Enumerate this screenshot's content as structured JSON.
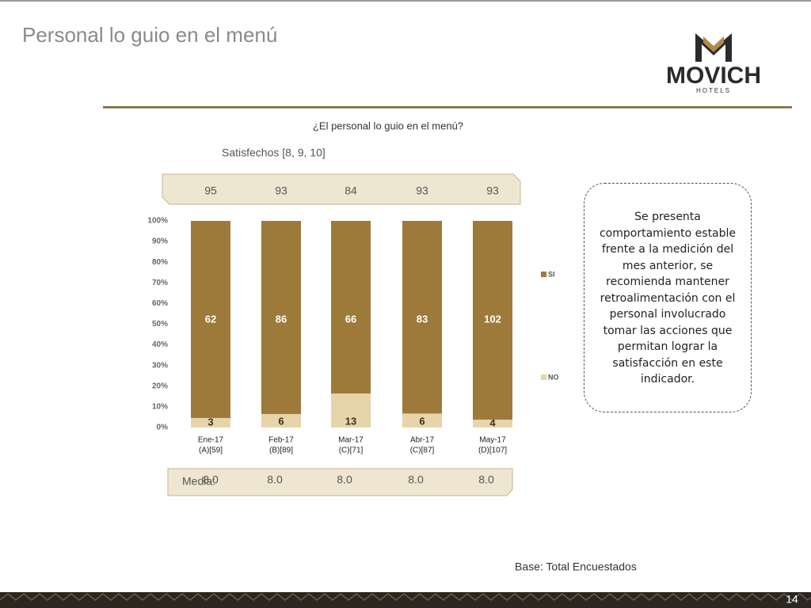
{
  "slide_title": "Personal lo guio en el menú",
  "logo": {
    "name": "MOVICH",
    "sub": "HOTELS"
  },
  "chart_data": {
    "type": "bar",
    "stacking": "percent",
    "title": "¿El personal lo guio en el menú?",
    "categories": [
      "Ene-17",
      "Feb-17",
      "Mar-17",
      "Abr-17",
      "May-17"
    ],
    "category_bases": [
      "(A)[59]",
      "(B)[89]",
      "(C)[71]",
      "(C)[87]",
      "(D)[107]"
    ],
    "series": [
      {
        "name": "NO",
        "color": "#e8d4ab",
        "values": [
          3,
          6,
          13,
          6,
          4
        ]
      },
      {
        "name": "SI",
        "color": "#9e7a3a",
        "values": [
          62,
          86,
          66,
          83,
          102
        ]
      }
    ],
    "ylim": [
      0,
      100
    ],
    "yticks": [
      {
        "value": 0,
        "label": "0%"
      },
      {
        "value": 10,
        "label": "10%"
      },
      {
        "value": 20,
        "label": "20%"
      },
      {
        "value": 30,
        "label": "30%"
      },
      {
        "value": 40,
        "label": "40%"
      },
      {
        "value": 50,
        "label": "50%"
      },
      {
        "value": 60,
        "label": "60%"
      },
      {
        "value": 70,
        "label": "70%"
      },
      {
        "value": 80,
        "label": "80%"
      },
      {
        "value": 90,
        "label": "90%"
      },
      {
        "value": 100,
        "label": "100%"
      }
    ],
    "satisfechos": {
      "label": "Satisfechos [8, 9, 10]",
      "values": [
        95,
        93,
        84,
        93,
        93
      ]
    },
    "media": {
      "label": "Media:",
      "values": [
        8,
        8,
        8,
        8,
        8
      ],
      "value_labels": [
        "8.0",
        "8.0",
        "8.0",
        "8.0",
        "8.0"
      ]
    }
  },
  "note": "Se presenta comportamiento estable frente a la medición del mes anterior, se recomienda mantener retroalimentación con el personal involucrado tomar las acciones que permitan lograr la satisfacción en este indicador.",
  "base": "Base: Total Encuestados",
  "page_number": "14"
}
